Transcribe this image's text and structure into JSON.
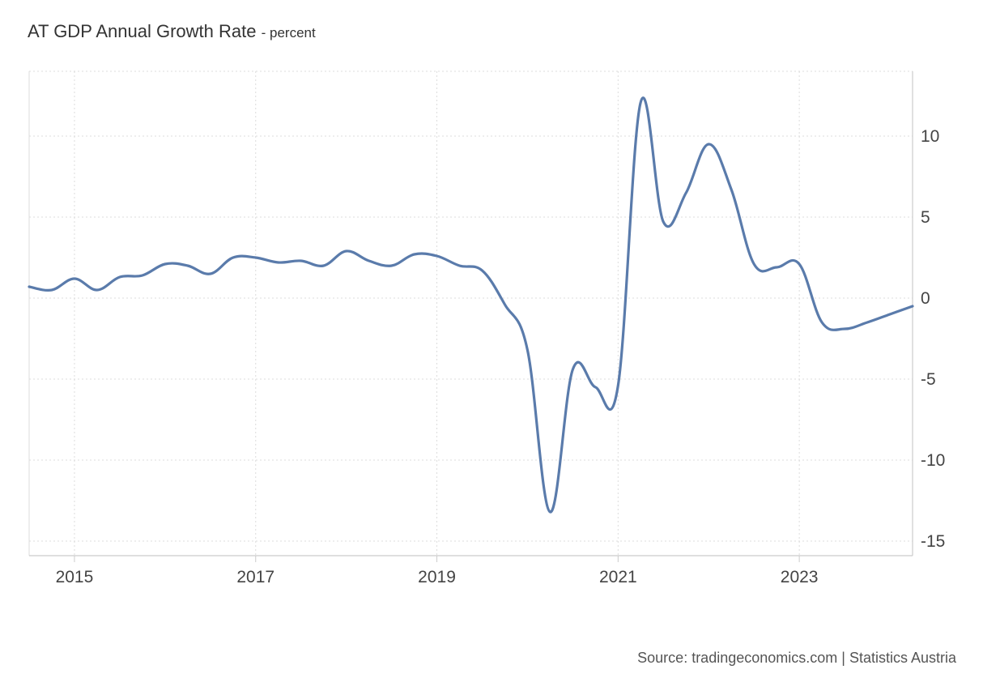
{
  "header": {
    "title": "AT GDP Annual Growth Rate",
    "unit_suffix": "- percent"
  },
  "footer": {
    "source": "Source: tradingeconomics.com | Statistics Austria"
  },
  "chart_data": {
    "type": "line",
    "title": "AT GDP Annual Growth Rate",
    "subtitle": "- percent",
    "xlabel": "",
    "ylabel": "",
    "xlim": [
      2014.5,
      2024.25
    ],
    "ylim": [
      -15.9,
      14
    ],
    "x_ticks": [
      2015,
      2017,
      2019,
      2021,
      2023
    ],
    "x_tick_labels": [
      "2015",
      "2017",
      "2019",
      "2021",
      "2023"
    ],
    "y_ticks": [
      10,
      5,
      0,
      -5,
      -10,
      -15
    ],
    "y_tick_labels": [
      "10",
      "5",
      "0",
      "-5",
      "-10",
      "-15"
    ],
    "grid": true,
    "legend": "none",
    "y_axis_side": "right",
    "line_color": "#5a7bab",
    "grid_color": "#dcdcdc",
    "series": [
      {
        "x": [
          2014.5,
          2014.75,
          2015.0,
          2015.25,
          2015.5,
          2015.75,
          2016.0,
          2016.25,
          2016.5,
          2016.75,
          2017.0,
          2017.25,
          2017.5,
          2017.75,
          2018.0,
          2018.25,
          2018.5,
          2018.75,
          2019.0,
          2019.25,
          2019.5,
          2019.75,
          2020.0,
          2020.25,
          2020.5,
          2020.75,
          2021.0,
          2021.25,
          2021.5,
          2021.75,
          2022.0,
          2022.25,
          2022.5,
          2022.75,
          2023.0,
          2023.25,
          2023.5,
          2023.75,
          2024.0,
          2024.25
        ],
        "values": [
          0.7,
          0.5,
          1.2,
          0.5,
          1.3,
          1.4,
          2.1,
          2.0,
          1.5,
          2.5,
          2.5,
          2.2,
          2.3,
          2.0,
          2.9,
          2.3,
          2.0,
          2.7,
          2.6,
          2.0,
          1.7,
          -0.4,
          -3.2,
          -13.2,
          -4.4,
          -5.5,
          -5.4,
          12.1,
          4.7,
          6.5,
          9.5,
          6.7,
          2.1,
          1.9,
          2.1,
          -1.5,
          -1.9,
          -1.5,
          -1.0,
          -0.5
        ]
      }
    ]
  }
}
